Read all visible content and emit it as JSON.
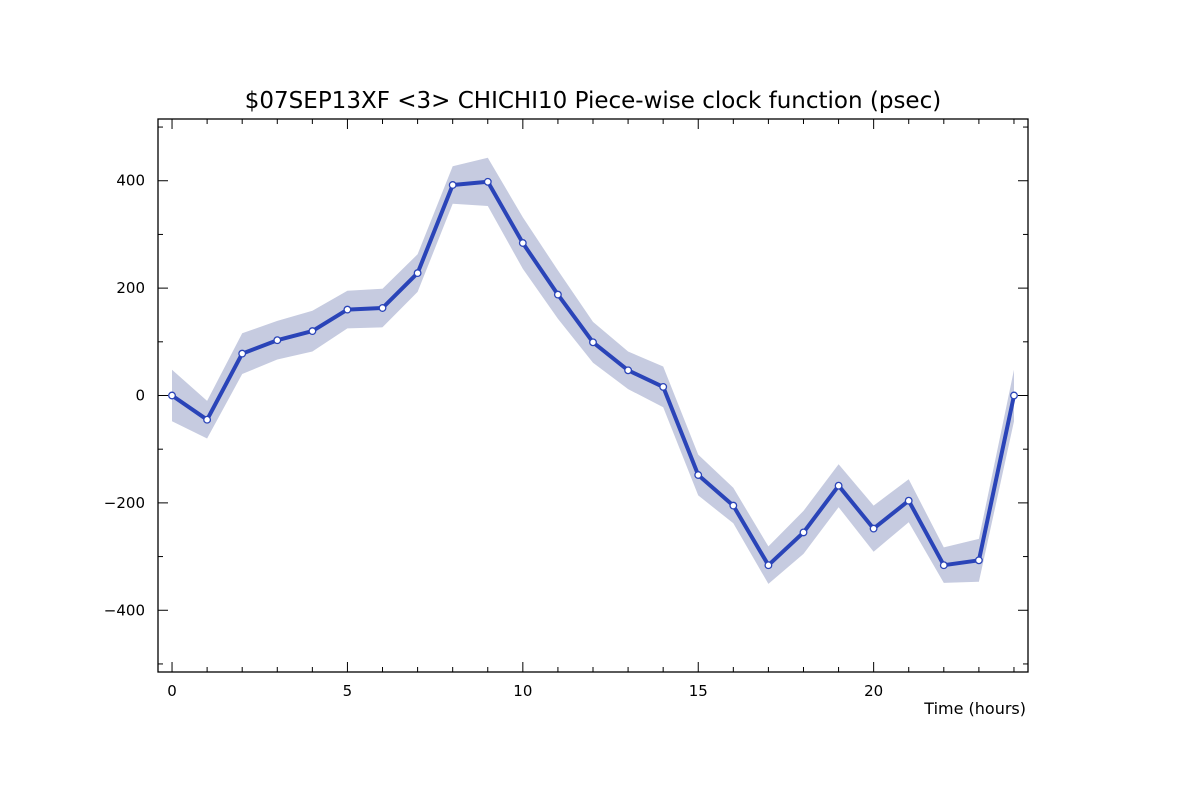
{
  "chart_data": {
    "type": "line",
    "title": "$07SEP13XF <3>  CHICHI10  Piece-wise clock function (psec)",
    "xlabel": "Time (hours)",
    "ylabel": "",
    "xlim": [
      -0.4,
      24.4
    ],
    "ylim": [
      -515,
      515
    ],
    "xticks": [
      0,
      5,
      10,
      15,
      20
    ],
    "xtick_labels": [
      "0",
      "5",
      "10",
      "15",
      "20"
    ],
    "yticks": [
      -400,
      -200,
      0,
      200,
      400
    ],
    "ytick_labels": [
      "−400",
      "−200",
      "0",
      "200",
      "400"
    ],
    "x": [
      0,
      1,
      2,
      3,
      4,
      5,
      6,
      7,
      8,
      9,
      10,
      11,
      12,
      13,
      14,
      15,
      16,
      17,
      18,
      19,
      20,
      21,
      22,
      23,
      24
    ],
    "series": [
      {
        "values": [
          0,
          -45,
          78,
          103,
          120,
          160,
          163,
          228,
          392,
          398,
          284,
          188,
          99,
          47,
          16,
          -148,
          -205,
          -316,
          -255,
          -168,
          -248,
          -196,
          -316,
          -307,
          0
        ],
        "uncertainty": [
          48,
          35,
          38,
          36,
          38,
          35,
          36,
          35,
          35,
          45,
          48,
          45,
          38,
          35,
          38,
          38,
          33,
          35,
          40,
          40,
          43,
          40,
          33,
          40,
          48
        ]
      }
    ],
    "grid": false,
    "colors": {
      "line": "#2a44b8",
      "band": "#c6cbe0",
      "axis": "#000000",
      "marker_fill": "#ffffff"
    }
  }
}
